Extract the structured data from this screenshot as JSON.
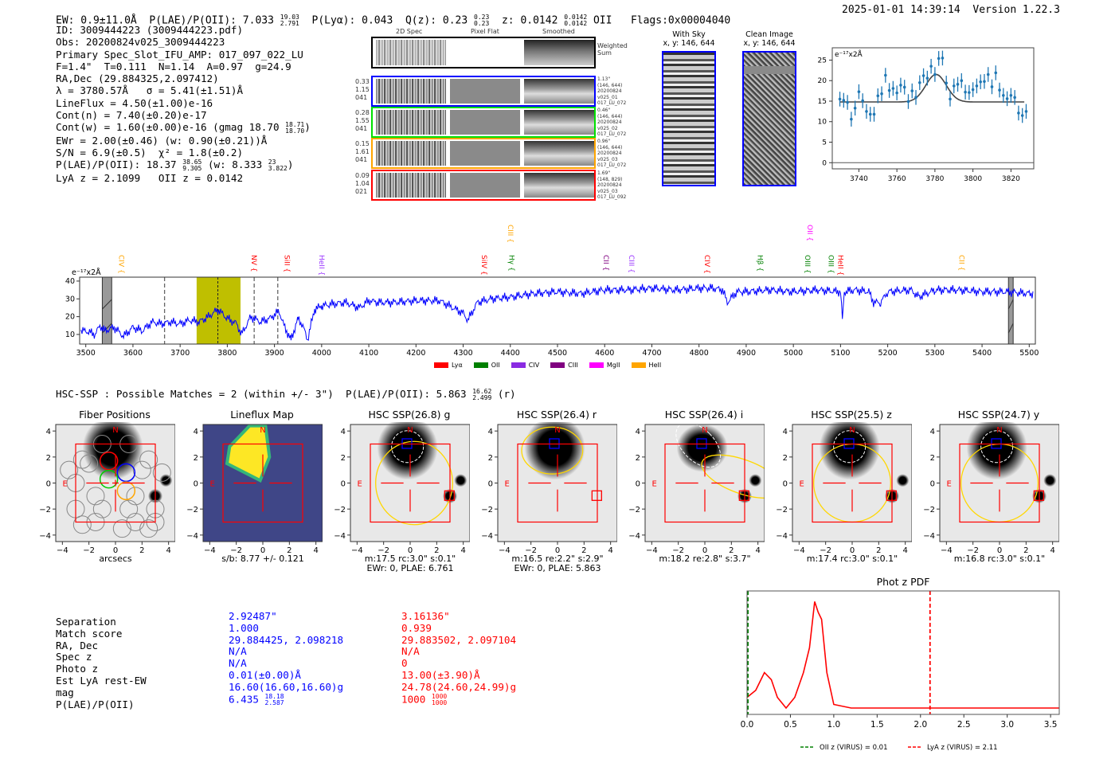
{
  "header": {
    "ew": "EW: 0.9±11.0Å",
    "plae_label": "P(LAE)/P(OII): 7.033",
    "plae_hi": "19.03",
    "plae_lo": "2.791",
    "plya": "P(Lyα): 0.043",
    "qz": "Q(z): 0.23",
    "qz_hi": "0.23",
    "qz_lo": "0.23",
    "z": "z: 0.0142",
    "z_hi": "0.0142",
    "z_lo": "0.0142",
    "z_line": "OII",
    "flags": "Flags:0x00004040",
    "timestamp": "2025-01-01 14:39:14",
    "version": "Version 1.22.3"
  },
  "info": {
    "lines": [
      "ID: 3009444223 (3009444223.pdf)",
      "Obs: 20200824v025_3009444223",
      "Primary Spec_Slot_IFU_AMP: 017_097_022_LU",
      "F=1.4\"  T=0.111  N=1.14  A=0.97  g=24.9",
      "RA,Dec (29.884325,2.097412)",
      "λ = 3780.57Å   σ = 5.41(±1.51)Å",
      "LineFlux = 4.50(±1.00)e-16",
      "Cont(n) = 7.40(±0.20)e-17"
    ],
    "cont_w": "Cont(w) = 1.60(±0.00)e-16 (gmag 18.70",
    "cont_w_hi": "18.71",
    "cont_w_lo": "18.70",
    "cont_w_end": ")",
    "ewr": "EWr = 2.00(±0.46) (w: 0.90(±0.21))Å",
    "sn": "S/N = 6.9(±0.5)  χ² = 1.8(±0.2)",
    "plae": "P(LAE)/P(OII): 18.37",
    "plae_hi": "38.65",
    "plae_lo": "9.305",
    "plae_w": "(w: 8.333",
    "plae_w_hi": "23",
    "plae_w_lo": "3.822",
    "plae_w_end": ")",
    "z": "LyA z = 2.1099   OII z = 0.0142"
  },
  "spec2d": {
    "columns": [
      "2D Spec",
      "Pixel Flat",
      "Smoothed"
    ],
    "weighted_label": "Weighted Sum",
    "rows": [
      {
        "color": "#0000ff",
        "left": [
          "0.33",
          "1.15",
          "041"
        ],
        "right": [
          "1.13\"",
          "(146, 644)",
          "20200824",
          "v025_01",
          "017_LU_072"
        ]
      },
      {
        "color": "#00e000",
        "left": [
          "0.28",
          "1.55",
          "041"
        ],
        "right": [
          "0.46\"",
          "(146, 644)",
          "20200824",
          "v025_02",
          "017_LU_072"
        ]
      },
      {
        "color": "#ffa500",
        "left": [
          "0.15",
          "1.61",
          "041"
        ],
        "right": [
          "0.96\"",
          "(146, 644)",
          "20200824",
          "v025_03",
          "017_LU_072"
        ]
      },
      {
        "color": "#ff0000",
        "left": [
          "0.09",
          "1.04",
          "021"
        ],
        "right": [
          "1.69\"",
          "(148, 829)",
          "20200824",
          "v025_03",
          "017_LU_092"
        ]
      }
    ]
  },
  "cutouts": {
    "with_sky": "With Sky",
    "with_sky_xy": "x, y: 146, 644",
    "clean": "Clean Image",
    "clean_xy": "x, y: 146, 644"
  },
  "chart_data": [
    {
      "name": "line-fit",
      "type": "scatter",
      "ylabel_unit": "e⁻¹⁷x2Å",
      "xlim": [
        3726,
        3832
      ],
      "ylim": [
        -1.5,
        28
      ],
      "xticks": [
        3740,
        3760,
        3780,
        3800,
        3820
      ],
      "yticks": [
        0,
        5,
        10,
        15,
        20,
        25
      ],
      "x_start": 3730,
      "x_step": 2,
      "y": [
        15.5,
        15.2,
        14.7,
        10.6,
        13.3,
        17.3,
        15.1,
        12.5,
        11.8,
        11.8,
        16.3,
        16.8,
        21.3,
        17.6,
        18.1,
        17.0,
        18.9,
        18.4,
        14.9,
        17.5,
        15.9,
        19.5,
        21.2,
        20.6,
        23.5,
        21.5,
        25.4,
        25.5,
        19.4,
        15.5,
        18.7,
        19.1,
        20.0,
        17.2,
        17.1,
        17.8,
        18.7,
        19.7,
        19.8,
        21.5,
        18.5,
        21.9,
        17.7,
        16.4,
        15.6,
        16.4,
        15.9,
        12.1,
        11.5,
        12.5
      ],
      "yerr": 1.8,
      "fit": {
        "continuum": 14.8,
        "amplitude": 6.7,
        "center": 3780.6,
        "sigma": 5.4
      }
    },
    {
      "name": "full-spectrum",
      "type": "line",
      "ylabel_unit": "e⁻¹⁷x2Å",
      "xlim": [
        3487,
        5513
      ],
      "ylim": [
        4.6,
        42.2
      ],
      "xticks": [
        3500,
        3600,
        3700,
        3800,
        3900,
        4000,
        4100,
        4200,
        4300,
        4400,
        4500,
        4600,
        4700,
        4800,
        4900,
        5000,
        5100,
        5200,
        5300,
        5400,
        5500
      ],
      "yticks": [
        10,
        20,
        30,
        40
      ],
      "x": [
        3490,
        3500,
        3520,
        3530,
        3540,
        3560,
        3580,
        3600,
        3620,
        3640,
        3660,
        3680,
        3700,
        3720,
        3740,
        3760,
        3780,
        3800,
        3820,
        3830,
        3850,
        3870,
        3890,
        3910,
        3920,
        3935,
        3950,
        3960,
        3970,
        3985,
        4000,
        4020,
        4050,
        4080,
        4100,
        4120,
        4150,
        4200,
        4250,
        4300,
        4310,
        4330,
        4360,
        4400,
        4450,
        4500,
        4550,
        4600,
        4650,
        4700,
        4750,
        4800,
        4830,
        4850,
        4860,
        4880,
        4900,
        4950,
        5000,
        5050,
        5100,
        5104,
        5108,
        5130,
        5160,
        5170,
        5185,
        5200,
        5250,
        5265,
        5300,
        5350,
        5400,
        5450,
        5500,
        5510
      ],
      "y": [
        12,
        12,
        10,
        15,
        12,
        14,
        9,
        14,
        12,
        17,
        16,
        17,
        16,
        18,
        17,
        20,
        24,
        19,
        16,
        10,
        20,
        17,
        19,
        23,
        15,
        7,
        19,
        15,
        7,
        24,
        26,
        27,
        28,
        25,
        29,
        28,
        28,
        29,
        29,
        22,
        18,
        28,
        30,
        31,
        33,
        34,
        33,
        35,
        35,
        36,
        35,
        36,
        36,
        35,
        28,
        34,
        34,
        35,
        34,
        35,
        34,
        18,
        34,
        35,
        34,
        28,
        28,
        34,
        35,
        31,
        35,
        35,
        34,
        34,
        33,
        33
      ],
      "vlines_dashed": [
        3667,
        3857,
        3907
      ],
      "highlight": [
        3735,
        3828
      ],
      "center_line": 3780,
      "masked": [
        [
          3535,
          3555
        ],
        [
          5456,
          5466
        ]
      ],
      "line_labels": [
        {
          "t": "CIV",
          "x": 3562,
          "c": "#ffa500"
        },
        {
          "t": "NV",
          "x": 3857,
          "c": "#ff0000"
        },
        {
          "t": "SiII",
          "x": 3927,
          "c": "#ff0000"
        },
        {
          "t": "HeII",
          "x": 4000,
          "c": "#9933ff"
        },
        {
          "t": "SiIV",
          "x": 4345,
          "c": "#ff0000"
        },
        {
          "t": "CIII",
          "x": 4400,
          "c": "#ffa500",
          "high": true
        },
        {
          "t": "Hγ",
          "x": 4403,
          "c": "#008000"
        },
        {
          "t": "CII",
          "x": 4603,
          "c": "#800080"
        },
        {
          "t": "CIII",
          "x": 4657,
          "c": "#9933ff"
        },
        {
          "t": "CIV",
          "x": 4817,
          "c": "#ff0000"
        },
        {
          "t": "Hβ",
          "x": 4930,
          "c": "#008000"
        },
        {
          "t": "OII",
          "x": 5035,
          "c": "#ff00ff",
          "high": true
        },
        {
          "t": "OIII",
          "x": 5030,
          "c": "#008000"
        },
        {
          "t": "OIII",
          "x": 5080,
          "c": "#008000"
        },
        {
          "t": "HeII",
          "x": 5100,
          "c": "#ff0000"
        },
        {
          "t": "CII",
          "x": 5357,
          "c": "#ffa500"
        }
      ],
      "legend": [
        {
          "t": "Lyα",
          "c": "#ff0000"
        },
        {
          "t": "OII",
          "c": "#008000"
        },
        {
          "t": "CIV",
          "c": "#8a2be2"
        },
        {
          "t": "CIII",
          "c": "#800080"
        },
        {
          "t": "MgII",
          "c": "#ff00ff"
        },
        {
          "t": "HeII",
          "c": "#ffa500"
        }
      ]
    },
    {
      "name": "phot-z-pdf",
      "type": "line",
      "title": "Phot z PDF",
      "xlim": [
        0,
        3.6
      ],
      "xticks": [
        "0.0",
        "0.5",
        "1.0",
        "1.5",
        "2.0",
        "2.5",
        "3.0",
        "3.5"
      ],
      "x": [
        0,
        0.1,
        0.2,
        0.28,
        0.35,
        0.45,
        0.55,
        0.65,
        0.72,
        0.78,
        0.82,
        0.86,
        0.92,
        1.0,
        1.2,
        3.6
      ],
      "y": [
        0.03,
        0.05,
        0.1,
        0.08,
        0.03,
        0.0,
        0.03,
        0.1,
        0.17,
        0.3,
        0.27,
        0.25,
        0.1,
        0.01,
        0.0,
        0.0
      ],
      "vlines": [
        {
          "x": 0.01,
          "c": "#008000",
          "label": "OII z (VIRUS) = 0.01"
        },
        {
          "x": 2.11,
          "c": "#ff0000",
          "label": "LyA z (VIRUS) = 2.11"
        }
      ]
    }
  ],
  "hsc": {
    "title": "HSC-SSP : Possible Matches = 2 (within +/- 3\")  P(LAE)/P(OII): 5.863",
    "title_hi": "16.62",
    "title_lo": "2.499",
    "title_end": "(r)",
    "ticks": [
      "−4",
      "−2",
      "0",
      "2",
      "4"
    ],
    "north": "N",
    "east": "E",
    "panels": [
      {
        "title": "Fiber Positions",
        "cap": [
          "arcsecs"
        ]
      },
      {
        "title": "Lineflux Map",
        "cap": [
          "s/b: 8.77 +/- 0.121"
        ]
      },
      {
        "title": "HSC SSP(26.8) g",
        "cap": [
          "m:17.5 rc:3.0\"  s:0.1\"",
          "EWr: 0, PLAE: 6.761"
        ]
      },
      {
        "title": "HSC SSP(26.4) r",
        "cap": [
          "m:16.5  re:2.2\"  s:2.9\"",
          "EWr: 0, PLAE: 5.863"
        ]
      },
      {
        "title": "HSC SSP(26.4) i",
        "cap": [
          "m:18.2  re:2.8\"  s:3.7\""
        ]
      },
      {
        "title": "HSC SSP(25.5) z",
        "cap": [
          "m:17.4 rc:3.0\"  s:0.1\""
        ]
      },
      {
        "title": "HSC SSP(24.7) y",
        "cap": [
          "m:16.8 rc:3.0\"  s:0.1\""
        ]
      }
    ]
  },
  "matches": {
    "labels": [
      "Separation",
      "Match score",
      "RA, Dec",
      "Spec z",
      "Photo z",
      "Est LyA rest-EW",
      "mag",
      "P(LAE)/P(OII)"
    ],
    "blue": [
      "2.92487\"",
      "1.000",
      "29.884425, 2.098218",
      "N/A",
      "N/A",
      "0.01(±0.00)Å",
      "16.60(16.60,16.60)g",
      "6.435"
    ],
    "blue_hi": "18.18",
    "blue_lo": "2.587",
    "red": [
      "3.16136\"",
      "0.939",
      "29.883502, 2.097104",
      "N/A",
      "0",
      "13.00(±3.90)Å",
      "24.78(24.60,24.99)g",
      "1000"
    ],
    "red_hi": "1000",
    "red_lo": "1000"
  }
}
